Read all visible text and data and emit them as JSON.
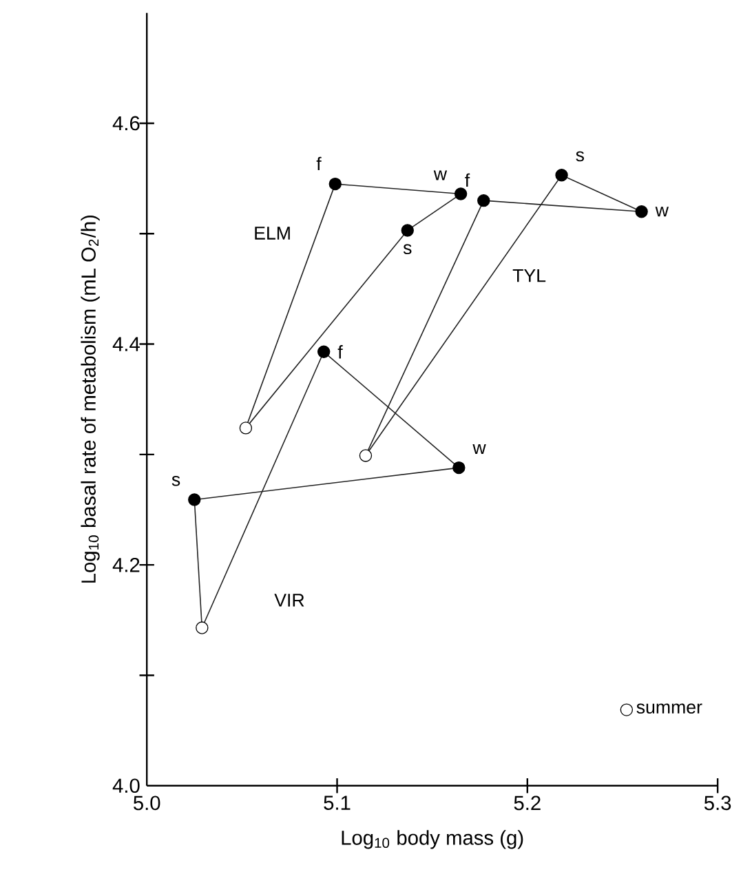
{
  "chart_data": {
    "type": "line",
    "xlabel": "Log$_{10}$ body mass (g)",
    "ylabel": "Log$_{10}$ basal rate of metabolism (mL O$_{2}$/h)",
    "xlim": [
      5.0,
      5.3
    ],
    "ylim": [
      4.0,
      4.7
    ],
    "xticks": [
      {
        "value": 5.0,
        "label": "5.0"
      },
      {
        "value": 5.1,
        "label": "5.1"
      },
      {
        "value": 5.2,
        "label": "5.2"
      },
      {
        "value": 5.3,
        "label": "5.3"
      }
    ],
    "yticks": [
      {
        "value": 4.0,
        "label": "4.0"
      },
      {
        "value": 4.1,
        "label": null
      },
      {
        "value": 4.2,
        "label": "4.2"
      },
      {
        "value": 4.3,
        "label": null
      },
      {
        "value": 4.4,
        "label": "4.4"
      },
      {
        "value": 4.5,
        "label": null
      },
      {
        "value": 4.6,
        "label": "4.6"
      }
    ],
    "series": [
      {
        "type": "scatter",
        "color": "#000000",
        "marker": "circle",
        "x": [
          5.099,
          5.165,
          5.137,
          5.177,
          5.26,
          5.218,
          5.025,
          5.164,
          5.093
        ],
        "values": [
          4.545,
          4.536,
          4.503,
          4.53,
          4.52,
          4.553,
          4.259,
          4.288,
          4.393
        ],
        "value_labels": [
          "f",
          "w",
          "s",
          "f",
          "w",
          "s",
          "s",
          "w",
          "f"
        ]
      },
      {
        "type": "scatter",
        "name": "summer",
        "color": "#ffffff",
        "marker": "circle",
        "x": [
          5.052,
          5.115,
          5.029
        ],
        "values": [
          4.324,
          4.299,
          4.143
        ]
      },
      {
        "color": "#222222",
        "marker": "none",
        "x": [
          5.052,
          5.099,
          5.165
        ],
        "values": [
          4.324,
          4.545,
          4.536
        ]
      },
      {
        "color": "#222222",
        "marker": "none",
        "x": [
          5.052,
          5.137,
          5.165
        ],
        "values": [
          4.324,
          4.503,
          4.536
        ]
      },
      {
        "color": "#222222",
        "marker": "none",
        "x": [
          5.115,
          5.177,
          5.26
        ],
        "values": [
          4.299,
          4.53,
          4.52
        ]
      },
      {
        "color": "#222222",
        "marker": "none",
        "x": [
          5.115,
          5.218,
          5.26
        ],
        "values": [
          4.299,
          4.553,
          4.52
        ]
      },
      {
        "color": "#222222",
        "marker": "none",
        "x": [
          5.025,
          5.029
        ],
        "values": [
          4.259,
          4.143
        ]
      },
      {
        "color": "#222222",
        "marker": "none",
        "x": [
          5.025,
          5.164
        ],
        "values": [
          4.259,
          4.288
        ]
      },
      {
        "color": "#222222",
        "marker": "none",
        "x": [
          5.029,
          5.093,
          5.164
        ],
        "values": [
          4.143,
          4.393,
          4.288
        ]
      }
    ],
    "annotations": [
      "ELM",
      "TYL",
      "VIR"
    ],
    "legend": "bottom right"
  }
}
